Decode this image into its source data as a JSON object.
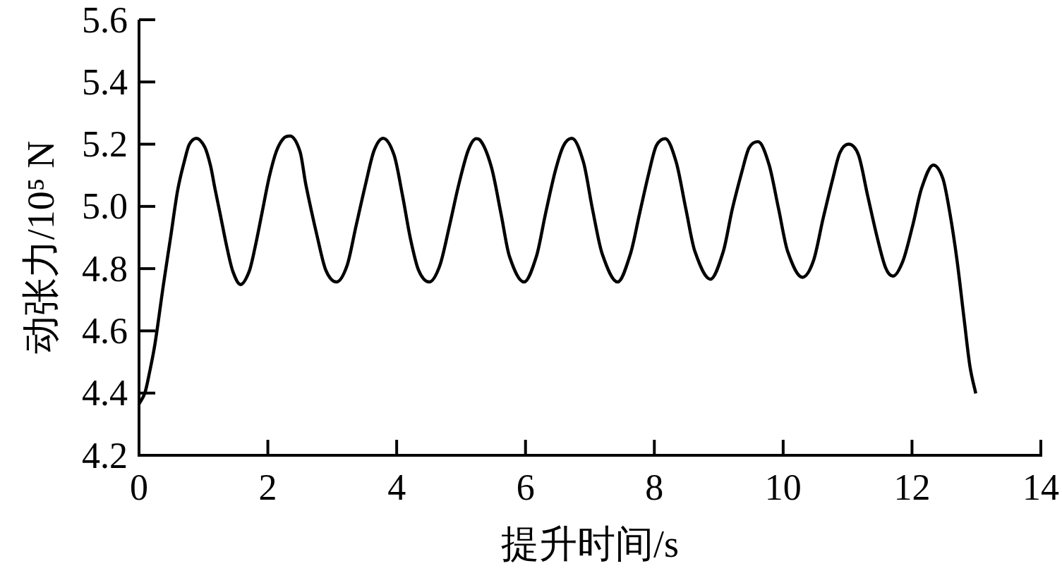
{
  "chart_data": {
    "type": "line",
    "xlabel": "提升时间/s",
    "ylabel": "动张力/10⁵ N",
    "xlim": [
      0,
      14
    ],
    "xticks": [
      0,
      2,
      4,
      6,
      8,
      10,
      12,
      14
    ],
    "ylim": [
      4.2,
      5.6
    ],
    "yticks": [
      4.2,
      4.4,
      4.6,
      4.8,
      {
        "value": 5,
        "label": "5.0"
      },
      5.2,
      5.4,
      5.6
    ],
    "line_style": "solid",
    "x": [
      0,
      0.09,
      0.16,
      0.25,
      0.38,
      0.49,
      0.6,
      0.71,
      0.78,
      0.89,
      1.02,
      1.11,
      1.18,
      1.256,
      1.366,
      1.457,
      1.577,
      1.71,
      1.8,
      1.91,
      2.02,
      2.13,
      2.24,
      2.344,
      2.5,
      2.59,
      2.77,
      2.9,
      3.064,
      3.23,
      3.37,
      3.52,
      3.65,
      3.79,
      3.96,
      4.09,
      4.21,
      4.34,
      4.505,
      4.67,
      4.82,
      4.96,
      5.11,
      5.235,
      5.29,
      5.47,
      5.62,
      5.75,
      5.977,
      6.17,
      6.31,
      6.46,
      6.59,
      6.72,
      6.9,
      7.04,
      7.19,
      7.43,
      7.63,
      7.77,
      7.92,
      8.03,
      8.17,
      8.34,
      8.49,
      8.63,
      8.87,
      9.07,
      9.21,
      9.36,
      9.47,
      9.61,
      9.78,
      9.93,
      10.07,
      10.3,
      10.47,
      10.62,
      10.77,
      10.88,
      11.015,
      11.17,
      11.31,
      11.46,
      11.59,
      11.705,
      11.86,
      12.01,
      12.15,
      12.33,
      12.48,
      12.59,
      12.7,
      12.81,
      12.9,
      12.99
    ],
    "series": [
      {
        "color": "#000000",
        "values": [
          4.365,
          4.4,
          4.463,
          4.561,
          4.75,
          4.9,
          5.052,
          5.15,
          5.199,
          5.219,
          5.191,
          5.131,
          5.056,
          4.98,
          4.867,
          4.791,
          4.749,
          4.791,
          4.867,
          4.98,
          5.093,
          5.176,
          5.218,
          5.226,
          5.176,
          5.07,
          4.9,
          4.795,
          4.757,
          4.81,
          4.938,
          5.074,
          5.18,
          5.219,
          5.165,
          5.036,
          4.9,
          4.795,
          4.757,
          4.81,
          4.938,
          5.067,
          5.18,
          5.218,
          5.214,
          5.127,
          4.976,
          4.84,
          4.757,
          4.84,
          4.976,
          5.112,
          5.195,
          5.219,
          5.142,
          4.991,
          4.848,
          4.757,
          4.848,
          4.976,
          5.112,
          5.195,
          5.218,
          5.142,
          4.991,
          4.855,
          4.766,
          4.855,
          4.991,
          5.112,
          5.188,
          5.208,
          5.135,
          4.991,
          4.855,
          4.772,
          4.825,
          4.961,
          5.089,
          5.172,
          5.2,
          5.165,
          5.036,
          4.9,
          4.803,
          4.776,
          4.825,
          4.938,
          5.059,
          5.133,
          5.089,
          4.976,
          4.825,
          4.636,
          4.485,
          4.399
        ]
      }
    ]
  }
}
